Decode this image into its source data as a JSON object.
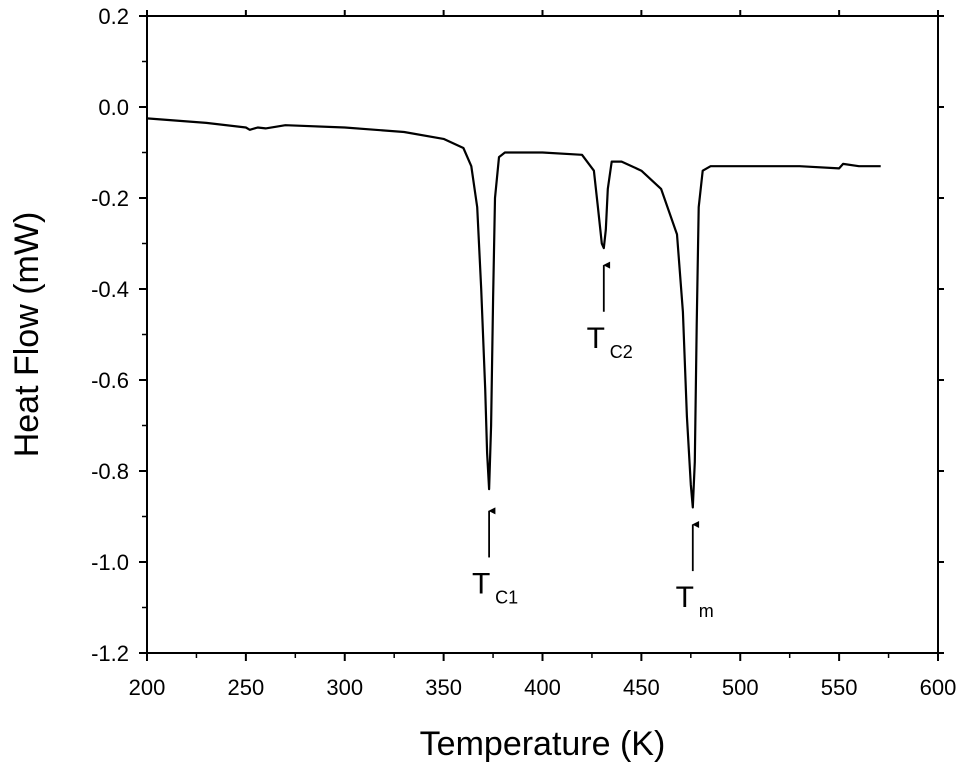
{
  "chart_data": {
    "type": "line",
    "title": "",
    "xlabel": "Temperature (K)",
    "ylabel": "Heat Flow (mW)",
    "xlim": [
      200,
      600
    ],
    "ylim": [
      -1.2,
      0.2
    ],
    "grid": false,
    "legend": "none",
    "x_ticks": [
      "200",
      "250",
      "300",
      "350",
      "400",
      "450",
      "500",
      "550",
      "600"
    ],
    "y_ticks": [
      "0.2",
      "0.0",
      "-0.2",
      "-0.4",
      "-0.6",
      "-0.8",
      "-1.0",
      "-1.2"
    ],
    "line_color": "#000000",
    "series": [
      {
        "x": [
          200,
          230,
          250,
          252,
          256,
          260,
          270,
          300,
          330,
          350,
          360,
          364,
          367,
          369,
          371,
          372,
          373,
          374,
          375,
          376,
          378,
          381,
          385,
          400,
          420,
          426,
          428,
          430,
          431,
          432,
          433,
          435,
          440,
          450,
          460,
          468,
          471,
          473,
          475,
          476,
          477,
          478,
          479,
          481,
          485,
          500,
          530,
          550,
          552,
          560,
          571
        ],
        "y": [
          -0.025,
          -0.035,
          -0.045,
          -0.05,
          -0.045,
          -0.047,
          -0.04,
          -0.045,
          -0.055,
          -0.07,
          -0.09,
          -0.13,
          -0.22,
          -0.4,
          -0.62,
          -0.76,
          -0.84,
          -0.7,
          -0.42,
          -0.2,
          -0.11,
          -0.1,
          -0.1,
          -0.1,
          -0.105,
          -0.14,
          -0.22,
          -0.3,
          -0.31,
          -0.27,
          -0.18,
          -0.12,
          -0.12,
          -0.14,
          -0.18,
          -0.28,
          -0.45,
          -0.68,
          -0.83,
          -0.88,
          -0.78,
          -0.48,
          -0.22,
          -0.14,
          -0.13,
          -0.13,
          -0.13,
          -0.135,
          -0.125,
          -0.13,
          -0.13
        ]
      }
    ],
    "annotations": [
      {
        "main": "T",
        "sub": "C1",
        "x": 373,
        "tip_y": -0.87,
        "tail_y": -0.99
      },
      {
        "main": "T",
        "sub": "C2",
        "x": 431,
        "tip_y": -0.33,
        "tail_y": -0.45
      },
      {
        "main": "T",
        "sub": "m",
        "x": 476,
        "tip_y": -0.9,
        "tail_y": -1.02
      }
    ]
  }
}
